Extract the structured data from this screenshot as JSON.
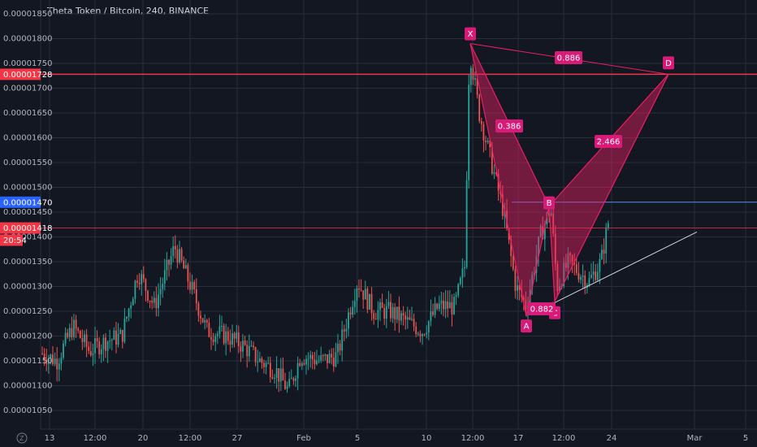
{
  "chart_title": "Theta Token / Bitcoin, 240, BINANCE",
  "bottom_left_icon": "tradingview-icon",
  "chart_data": {
    "type": "candlestick",
    "title": "Theta Token / Bitcoin, 240, BINANCE",
    "y_axis": {
      "ticks": [
        "0.00001850",
        "0.00001800",
        "0.00001750",
        "0.00001700",
        "0.00001650",
        "0.00001600",
        "0.00001550",
        "0.00001500",
        "0.00001450",
        "0.00001400",
        "0.00001350",
        "0.00001300",
        "0.00001250",
        "0.00001200",
        "0.00001150",
        "0.00001100",
        "0.00001050"
      ],
      "range": [
        1.02e-05,
        1.87e-05
      ]
    },
    "x_axis": {
      "ticks": [
        "13",
        "12:00",
        "20",
        "12:00",
        "27",
        "Feb",
        "5",
        "10",
        "12:00",
        "17",
        "12:00",
        "24",
        "Mar",
        "5"
      ]
    },
    "price_markers": [
      {
        "label": "0.00001728",
        "value": 1.728e-05,
        "color": "#f23645"
      },
      {
        "label": "0.00001470",
        "value": 1.47e-05,
        "color": "#2962ff"
      },
      {
        "label": "0.00001418",
        "value": 1.418e-05,
        "color": "#f23645"
      }
    ],
    "countdown": "20:54",
    "harmonic_pattern": {
      "points": [
        {
          "name": "X",
          "value": 1.79e-05
        },
        {
          "name": "A",
          "value": 1.24e-05
        },
        {
          "name": "B",
          "value": 1.462e-05
        },
        {
          "name": "C",
          "value": 1.27e-05
        },
        {
          "name": "D",
          "value": 1.728e-05
        }
      ],
      "ratios": [
        {
          "label": "0.386",
          "between": "XA-B"
        },
        {
          "label": "0.882",
          "between": "AB-C"
        },
        {
          "label": "2.466",
          "between": "BC-D"
        },
        {
          "label": "0.886",
          "between": "XA-D"
        }
      ],
      "fill_color": "#e91e63"
    },
    "trendline": {
      "from": 1.265e-05,
      "to": 1.41e-05,
      "color": "#d1d4dc"
    },
    "colors": {
      "up": "#26a69a",
      "down": "#ef5350",
      "background": "#131722",
      "grid": "#2a2e39"
    }
  }
}
